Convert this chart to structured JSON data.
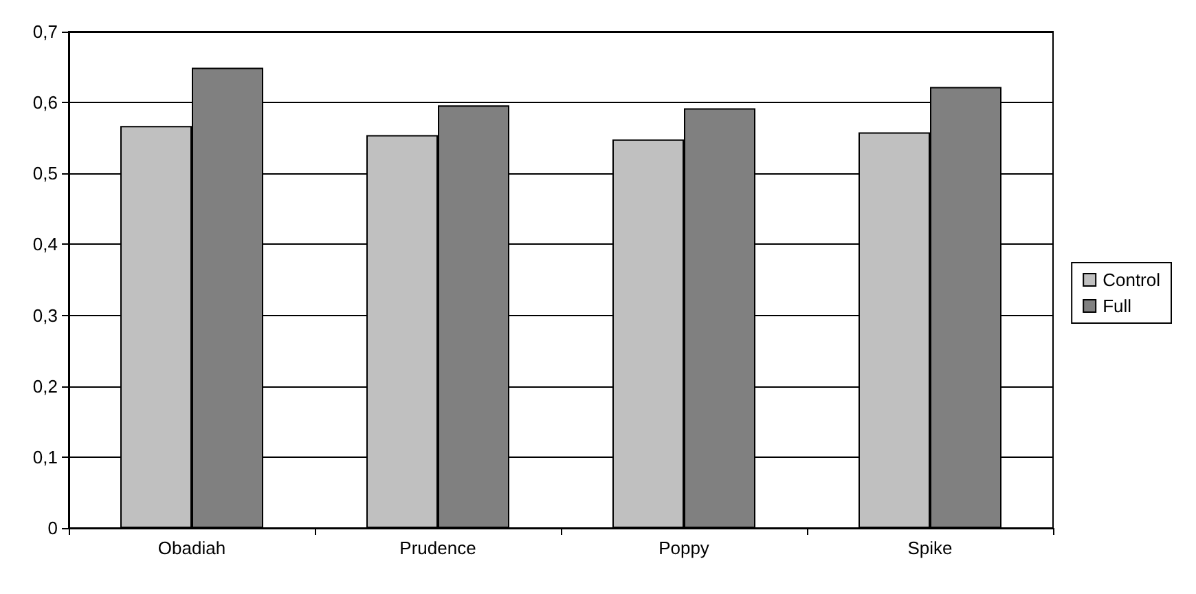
{
  "chart_data": {
    "type": "bar",
    "categories": [
      "Obadiah",
      "Prudence",
      "Poppy",
      "Spike"
    ],
    "series": [
      {
        "name": "Control",
        "color": "#c0c0c0",
        "values": [
          0.567,
          0.554,
          0.548,
          0.558
        ]
      },
      {
        "name": "Full",
        "color": "#808080",
        "values": [
          0.649,
          0.596,
          0.592,
          0.622
        ]
      }
    ],
    "ylim": [
      0,
      0.7
    ],
    "yticks": [
      {
        "value": 0,
        "label": "0"
      },
      {
        "value": 0.1,
        "label": "0,1"
      },
      {
        "value": 0.2,
        "label": "0,2"
      },
      {
        "value": 0.3,
        "label": "0,3"
      },
      {
        "value": 0.4,
        "label": "0,4"
      },
      {
        "value": 0.5,
        "label": "0,5"
      },
      {
        "value": 0.6,
        "label": "0,6"
      },
      {
        "value": 0.7,
        "label": "0,7"
      }
    ],
    "grid": "y",
    "legend": "right"
  }
}
